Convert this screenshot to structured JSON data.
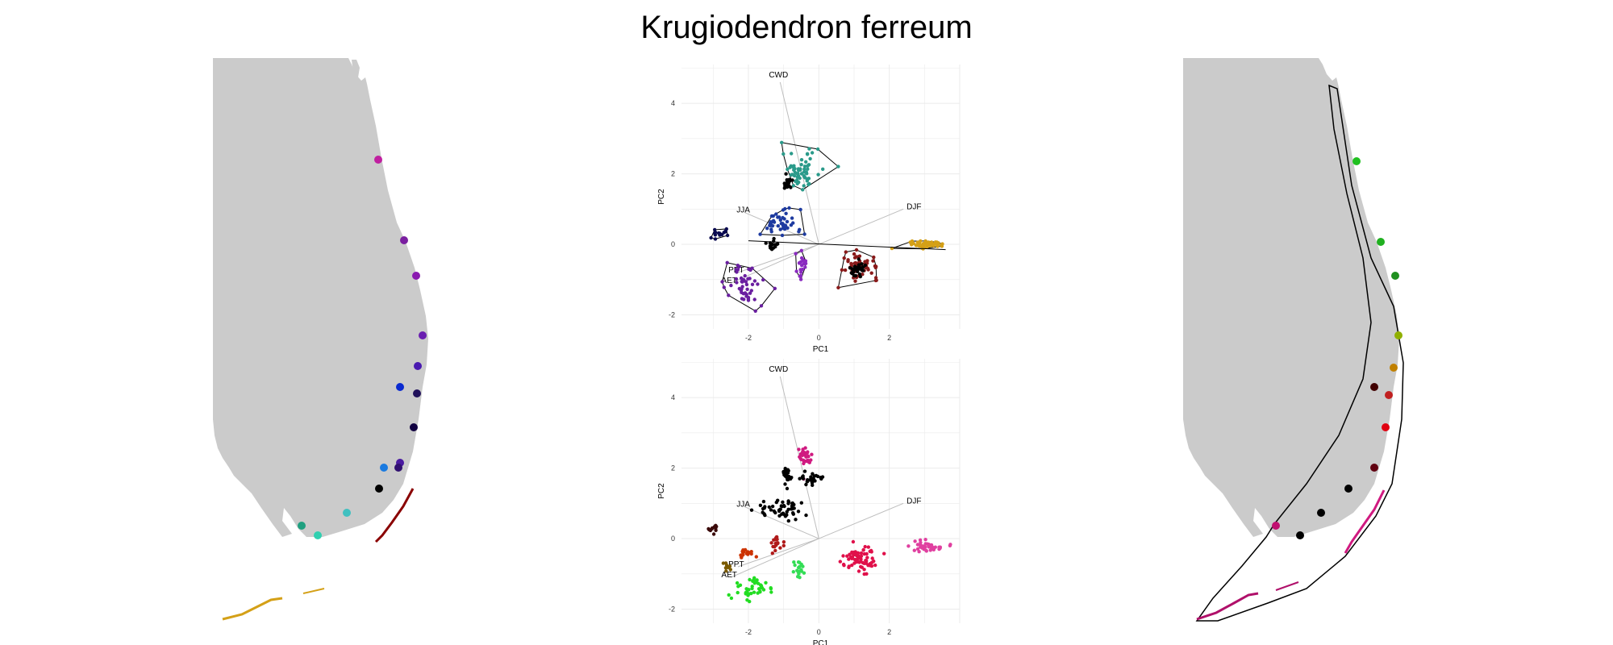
{
  "title": "Krugiodendron ferreum",
  "colors": {
    "land": "#cbcbcb",
    "grid": "#ebebeb",
    "vector": "#bdbdbd",
    "hull": "#000000"
  },
  "chart_data": [
    {
      "type": "scatter",
      "panel": "pca-top",
      "xlabel": "PC1",
      "ylabel": "PC2",
      "xlim": [
        -3.9,
        4.0
      ],
      "ylim": [
        -2.4,
        5.1
      ],
      "xticks": [
        -2,
        0,
        2
      ],
      "yticks": [
        -2,
        0,
        2,
        4
      ],
      "grid": true,
      "legend": "none",
      "vectors": [
        {
          "label": "CWD",
          "x": -1.1,
          "y": 4.6
        },
        {
          "label": "DJF",
          "x": 2.4,
          "y": 1.0
        },
        {
          "label": "JJA",
          "x": -2.1,
          "y": 0.9
        },
        {
          "label": "PPT",
          "x": -2.3,
          "y": -0.8
        },
        {
          "label": "AET",
          "x": -2.5,
          "y": -1.1
        }
      ],
      "clusters": [
        {
          "color": "#2a9a8a",
          "cx": -0.5,
          "cy": 2.1,
          "sx": 0.45,
          "sy": 0.45,
          "n": 60
        },
        {
          "color": "#000000",
          "cx": -0.9,
          "cy": 1.7,
          "sx": 0.1,
          "sy": 0.15,
          "n": 25
        },
        {
          "color": "#1e3ba0",
          "cx": -1.1,
          "cy": 0.6,
          "sx": 0.5,
          "sy": 0.35,
          "n": 45
        },
        {
          "color": "#0a0a50",
          "cx": -2.8,
          "cy": 0.3,
          "sx": 0.3,
          "sy": 0.15,
          "n": 15
        },
        {
          "color": "#000000",
          "cx": -1.3,
          "cy": 0.0,
          "sx": 0.15,
          "sy": 0.15,
          "n": 15
        },
        {
          "color": "#8a1a1a",
          "cx": 1.2,
          "cy": -0.6,
          "sx": 0.4,
          "sy": 0.3,
          "n": 60
        },
        {
          "color": "#000000",
          "cx": 1.1,
          "cy": -0.7,
          "sx": 0.2,
          "sy": 0.15,
          "n": 30
        },
        {
          "color": "#d4a017",
          "cx": 3.1,
          "cy": 0.0,
          "sx": 0.4,
          "sy": 0.08,
          "n": 60
        },
        {
          "color": "#6a1fa0",
          "cx": -2.1,
          "cy": -1.2,
          "sx": 0.45,
          "sy": 0.5,
          "n": 50
        },
        {
          "color": "#8a2ac0",
          "cx": -0.5,
          "cy": -0.6,
          "sx": 0.15,
          "sy": 0.35,
          "n": 20
        }
      ]
    },
    {
      "type": "scatter",
      "panel": "pca-bottom",
      "xlabel": "PC1",
      "ylabel": "PC2",
      "xlim": [
        -3.9,
        4.0
      ],
      "ylim": [
        -2.4,
        5.1
      ],
      "xticks": [
        -2,
        0,
        2
      ],
      "yticks": [
        -2,
        0,
        2,
        4
      ],
      "grid": true,
      "legend": "none",
      "vectors": [
        {
          "label": "CWD",
          "x": -1.1,
          "y": 4.6
        },
        {
          "label": "DJF",
          "x": 2.4,
          "y": 1.0
        },
        {
          "label": "JJA",
          "x": -2.1,
          "y": 0.9
        },
        {
          "label": "PPT",
          "x": -2.3,
          "y": -0.8
        },
        {
          "label": "AET",
          "x": -2.5,
          "y": -1.1
        }
      ],
      "clusters": [
        {
          "color": "#d01a80",
          "cx": -0.4,
          "cy": 2.3,
          "sx": 0.25,
          "sy": 0.25,
          "n": 30
        },
        {
          "color": "#000000",
          "cx": -0.2,
          "cy": 1.7,
          "sx": 0.25,
          "sy": 0.15,
          "n": 25
        },
        {
          "color": "#000000",
          "cx": -0.9,
          "cy": 1.8,
          "sx": 0.1,
          "sy": 0.2,
          "n": 30
        },
        {
          "color": "#000000",
          "cx": -1.1,
          "cy": 0.8,
          "sx": 0.55,
          "sy": 0.3,
          "n": 50
        },
        {
          "color": "#3a0a0a",
          "cx": -3.0,
          "cy": 0.3,
          "sx": 0.15,
          "sy": 0.12,
          "n": 12
        },
        {
          "color": "#cc3300",
          "cx": -2.1,
          "cy": -0.4,
          "sx": 0.25,
          "sy": 0.12,
          "n": 18
        },
        {
          "color": "#b01a1a",
          "cx": -1.2,
          "cy": -0.1,
          "sx": 0.15,
          "sy": 0.2,
          "n": 18
        },
        {
          "color": "#e0104a",
          "cx": 1.2,
          "cy": -0.6,
          "sx": 0.4,
          "sy": 0.3,
          "n": 70
        },
        {
          "color": "#e040a0",
          "cx": 3.1,
          "cy": -0.2,
          "sx": 0.4,
          "sy": 0.12,
          "n": 40
        },
        {
          "color": "#22dd22",
          "cx": -1.9,
          "cy": -1.4,
          "sx": 0.45,
          "sy": 0.3,
          "n": 40
        },
        {
          "color": "#33dd55",
          "cx": -0.6,
          "cy": -0.9,
          "sx": 0.12,
          "sy": 0.25,
          "n": 18
        },
        {
          "color": "#7a5a00",
          "cx": -2.6,
          "cy": -0.8,
          "sx": 0.1,
          "sy": 0.1,
          "n": 8
        }
      ]
    }
  ]
}
